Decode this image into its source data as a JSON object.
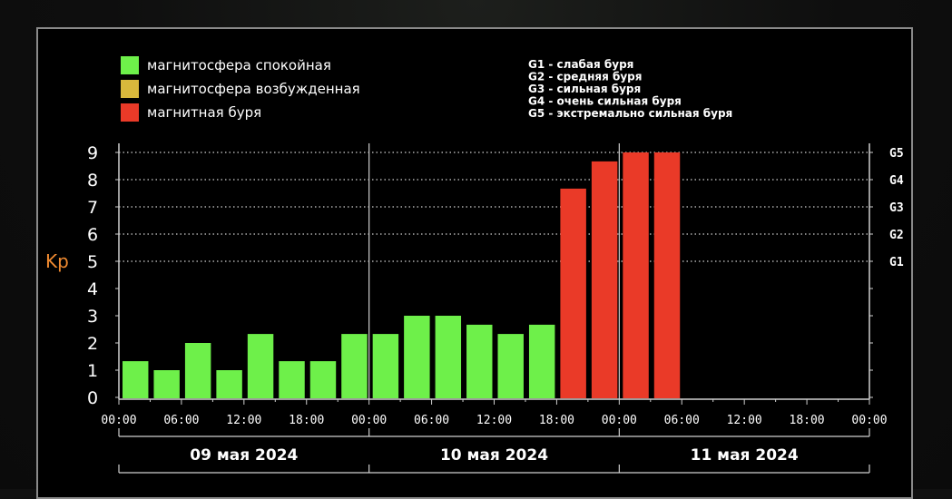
{
  "legend": {
    "items": [
      {
        "label": "магнитосфера спокойная",
        "color": "#6ef04a"
      },
      {
        "label": "магнитосфера возбужденная",
        "color": "#d9b83c"
      },
      {
        "label": "магнитная буря",
        "color": "#ea3a28"
      }
    ]
  },
  "storm_levels": [
    "G1 - слабая буря",
    "G2 - средняя буря",
    "G3 - сильная буря",
    "G4 - очень сильная буря",
    "G5 - экстремально сильная буря"
  ],
  "chart_data": {
    "type": "bar",
    "ylabel": "Kp",
    "ylim": [
      0,
      9
    ],
    "yticks": [
      "0",
      "1",
      "2",
      "3",
      "4",
      "5",
      "6",
      "7",
      "8",
      "9"
    ],
    "right_ticks": [
      {
        "value": 5,
        "label": "G1"
      },
      {
        "value": 6,
        "label": "G2"
      },
      {
        "value": 7,
        "label": "G3"
      },
      {
        "value": 8,
        "label": "G4"
      },
      {
        "value": 9,
        "label": "G5"
      }
    ],
    "xticks": [
      "00:00",
      "06:00",
      "12:00",
      "18:00",
      "00:00",
      "06:00",
      "12:00",
      "18:00",
      "00:00",
      "06:00",
      "12:00",
      "18:00",
      "00:00"
    ],
    "days": [
      "09 мая 2024",
      "10 мая 2024",
      "11 мая 2024"
    ],
    "slots_per_day": 8,
    "values": [
      1.33,
      1,
      2,
      1,
      2.33,
      1.33,
      1.33,
      2.33,
      2.33,
      3,
      3,
      2.67,
      2.33,
      2.67,
      7.67,
      8.67,
      9,
      9
    ],
    "colors": [
      "#6ef04a",
      "#6ef04a",
      "#6ef04a",
      "#6ef04a",
      "#6ef04a",
      "#6ef04a",
      "#6ef04a",
      "#6ef04a",
      "#6ef04a",
      "#6ef04a",
      "#6ef04a",
      "#6ef04a",
      "#6ef04a",
      "#6ef04a",
      "#ea3a28",
      "#ea3a28",
      "#ea3a28",
      "#ea3a28"
    ],
    "grid_dotted_levels": [
      5,
      6,
      7,
      8,
      9
    ]
  }
}
